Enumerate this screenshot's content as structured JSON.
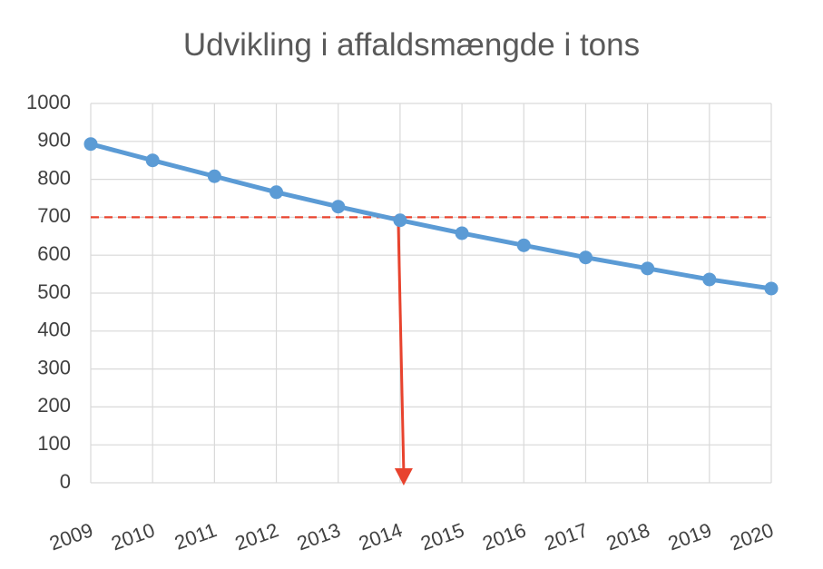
{
  "chart_data": {
    "type": "line",
    "title": "Udvikling i affaldsmængde i tons",
    "xlabel": "",
    "ylabel": "",
    "ylim": [
      0,
      1000
    ],
    "yticks": [
      0,
      100,
      200,
      300,
      400,
      500,
      600,
      700,
      800,
      900,
      1000
    ],
    "categories": [
      "2009",
      "2010",
      "2011",
      "2012",
      "2013",
      "2014",
      "2015",
      "2016",
      "2017",
      "2018",
      "2019",
      "2020"
    ],
    "series": [
      {
        "name": "",
        "color": "#5B9BD5",
        "values": [
          893,
          850,
          808,
          766,
          728,
          692,
          658,
          626,
          594,
          565,
          536,
          512
        ]
      }
    ],
    "annotations": {
      "reference_line": {
        "y": 700,
        "color": "#E8432E",
        "style": "dashed"
      },
      "arrow": {
        "x": "2014",
        "color": "#E8432E",
        "direction": "down"
      }
    },
    "grid": {
      "horizontal": true,
      "vertical": true,
      "color": "#d9d9d9"
    },
    "legend": "none"
  }
}
